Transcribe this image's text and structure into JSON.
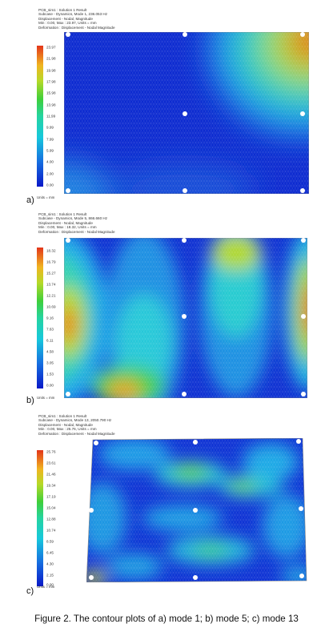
{
  "panels": [
    {
      "letter": "a)",
      "header": [
        "PCB_sim1 : Solution 1 Result",
        "Subcase - Dynamics, Mode 1, 236.053 Hz",
        "Displacement - Nodal, Magnitude",
        "Min : 0.00, Max : 23.97, Units = mm",
        "Deformation : Displacement - Nodal Magnitude"
      ],
      "ticks": [
        "23.97",
        "21.98",
        "19.98",
        "17.98",
        "15.98",
        "13.98",
        "11.99",
        "9.99",
        "7.99",
        "5.99",
        "4.00",
        "2.00",
        "0.00"
      ],
      "units": "Units = mm"
    },
    {
      "letter": "b)",
      "header": [
        "PCB_sim1 : Solution 1 Result",
        "Subcase - Dynamics, Mode 5, 866.660 Hz",
        "Displacement - Nodal, Magnitude",
        "Min : 0.00, Max : 18.32, Units = mm",
        "Deformation : Displacement - Nodal Magnitude"
      ],
      "ticks": [
        "18.32",
        "16.79",
        "15.27",
        "13.74",
        "12.21",
        "10.69",
        "9.16",
        "7.63",
        "6.11",
        "4.58",
        "3.05",
        "1.53",
        "0.00"
      ],
      "units": "Units = mm"
    },
    {
      "letter": "c)",
      "header": [
        "PCB_sim1 : Solution 1 Result",
        "Subcase - Dynamics, Mode 13, 2050.790 Hz",
        "Displacement - Nodal, Magnitude",
        "Min : 0.00, Max : 25.76, Units = mm",
        "Deformation : Displacement - Nodal Magnitude"
      ],
      "ticks": [
        "25.76",
        "23.61",
        "21.46",
        "19.34",
        "17.19",
        "15.04",
        "12.88",
        "10.74",
        "8.59",
        "6.45",
        "4.30",
        "2.15",
        "0.00"
      ],
      "units": "Units = mm"
    }
  ],
  "caption": "Figure 2. The contour plots of a) mode 1; b) mode 5; c) mode 13"
}
